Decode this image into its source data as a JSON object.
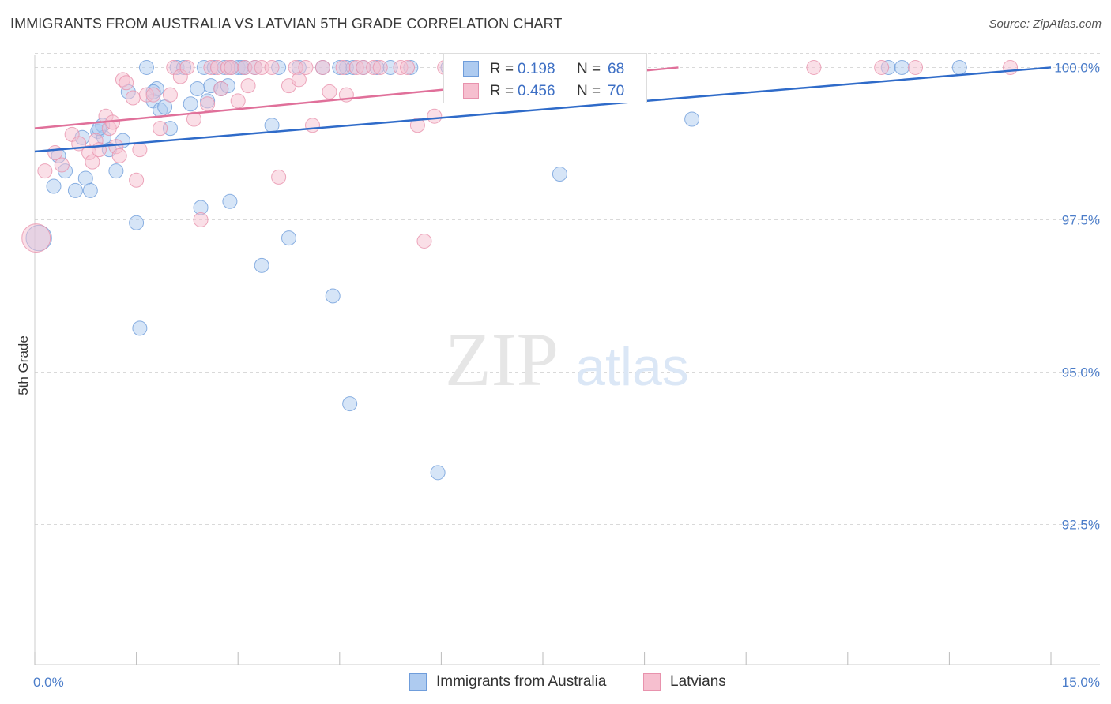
{
  "title": "IMMIGRANTS FROM AUSTRALIA VS LATVIAN 5TH GRADE CORRELATION CHART",
  "source": "Source: ZipAtlas.com",
  "watermark": {
    "zip": "ZIP",
    "atlas": "atlas"
  },
  "colors": {
    "blue_fill": "#aecbf0",
    "blue_stroke": "#6f9ddb",
    "blue_line": "#2f6bc9",
    "pink_fill": "#f6bfcf",
    "pink_stroke": "#e892ad",
    "pink_line": "#e0709a",
    "tick_text": "#4a7cc9",
    "grid": "#d9d9d9"
  },
  "stats": [
    {
      "r_label": "R =",
      "r_value": "0.198",
      "n_label": "N =",
      "n_value": "68",
      "color": "blue"
    },
    {
      "r_label": "R =",
      "r_value": "0.456",
      "n_label": "N =",
      "n_value": "70",
      "color": "pink"
    }
  ],
  "legend": [
    {
      "label": "Immigrants from Australia",
      "color": "blue"
    },
    {
      "label": "Latvians",
      "color": "pink"
    }
  ],
  "chart_data": {
    "type": "scatter",
    "title": "IMMIGRANTS FROM AUSTRALIA VS LATVIAN 5TH GRADE CORRELATION CHART",
    "xlabel": "",
    "ylabel": "5th Grade",
    "xlim": [
      0,
      15
    ],
    "ylim": [
      90.2,
      100.2
    ],
    "x_tick_labels": [
      {
        "value": 0,
        "label": "0.0%"
      },
      {
        "value": 15,
        "label": "15.0%"
      }
    ],
    "y_tick_labels": [
      {
        "value": 100,
        "label": "100.0%"
      },
      {
        "value": 97.5,
        "label": "97.5%"
      },
      {
        "value": 95,
        "label": "95.0%"
      },
      {
        "value": 92.5,
        "label": "92.5%"
      }
    ],
    "grid": "horizontal dashed",
    "legend_position": "bottom-center",
    "series": [
      {
        "name": "Immigrants from Australia",
        "color": "blue",
        "trendline": {
          "x": [
            0,
            15
          ],
          "y": [
            98.62,
            100.0
          ]
        },
        "points": [
          [
            0.06,
            97.2,
            1.8
          ],
          [
            0.28,
            98.05,
            1
          ],
          [
            0.35,
            98.55,
            1
          ],
          [
            0.45,
            98.3,
            1
          ],
          [
            0.6,
            97.98,
            1
          ],
          [
            0.7,
            98.85,
            1
          ],
          [
            0.75,
            98.18,
            1
          ],
          [
            0.82,
            97.98,
            1
          ],
          [
            0.93,
            98.95,
            1
          ],
          [
            1.0,
            99.05,
            1
          ],
          [
            1.02,
            98.85,
            1
          ],
          [
            1.1,
            98.65,
            1
          ],
          [
            1.2,
            98.3,
            1
          ],
          [
            1.3,
            98.8,
            1
          ],
          [
            1.38,
            99.6,
            1
          ],
          [
            1.5,
            97.45,
            1
          ],
          [
            1.55,
            95.72,
            1
          ],
          [
            1.65,
            100.0,
            1
          ],
          [
            1.75,
            99.45,
            1
          ],
          [
            1.8,
            99.65,
            1
          ],
          [
            1.85,
            99.3,
            1
          ],
          [
            1.92,
            99.35,
            1
          ],
          [
            2.0,
            99.0,
            1
          ],
          [
            2.1,
            100.0,
            1
          ],
          [
            2.2,
            100.0,
            1
          ],
          [
            2.3,
            99.4,
            1
          ],
          [
            2.4,
            99.65,
            1
          ],
          [
            2.45,
            97.7,
            1
          ],
          [
            2.5,
            100.0,
            1
          ],
          [
            2.6,
            99.7,
            1
          ],
          [
            2.65,
            100.0,
            1
          ],
          [
            2.75,
            99.65,
            1
          ],
          [
            2.85,
            99.7,
            1
          ],
          [
            2.9,
            100.0,
            1
          ],
          [
            3.0,
            100.0,
            1
          ],
          [
            3.1,
            100.0,
            1
          ],
          [
            2.8,
            100.0,
            1
          ],
          [
            2.88,
            97.8,
            1
          ],
          [
            3.05,
            100.0,
            1
          ],
          [
            3.25,
            100.0,
            1
          ],
          [
            3.35,
            96.75,
            1
          ],
          [
            3.6,
            100.0,
            1
          ],
          [
            3.5,
            99.05,
            1
          ],
          [
            3.75,
            97.2,
            1
          ],
          [
            3.9,
            100.0,
            1
          ],
          [
            4.25,
            100.0,
            1
          ],
          [
            4.4,
            96.25,
            1
          ],
          [
            4.6,
            100.0,
            1
          ],
          [
            4.5,
            100.0,
            1
          ],
          [
            4.7,
            100.0,
            1
          ],
          [
            4.85,
            100.0,
            1
          ],
          [
            4.65,
            94.48,
            1
          ],
          [
            5.05,
            100.0,
            1
          ],
          [
            5.25,
            100.0,
            1
          ],
          [
            5.55,
            100.0,
            1
          ],
          [
            5.95,
            93.35,
            1
          ],
          [
            6.1,
            100.0,
            1
          ],
          [
            6.25,
            100.0,
            1
          ],
          [
            7.3,
            100.0,
            1
          ],
          [
            7.75,
            98.25,
            1
          ],
          [
            8.25,
            100.0,
            1
          ],
          [
            9.7,
            99.15,
            1
          ],
          [
            12.6,
            100.0,
            1
          ],
          [
            12.8,
            100.0,
            1
          ],
          [
            13.65,
            100.0,
            1
          ],
          [
            0.95,
            99.0,
            1
          ],
          [
            1.75,
            99.6,
            1
          ],
          [
            2.55,
            99.45,
            1
          ]
        ]
      },
      {
        "name": "Latvians",
        "color": "pink",
        "trendline": {
          "x": [
            0,
            9.5
          ],
          "y": [
            99.0,
            100.0
          ]
        },
        "points": [
          [
            0.02,
            97.2,
            2.0
          ],
          [
            0.15,
            98.3,
            1
          ],
          [
            0.3,
            98.6,
            1
          ],
          [
            0.4,
            98.4,
            1
          ],
          [
            0.55,
            98.9,
            1
          ],
          [
            0.65,
            98.75,
            1
          ],
          [
            0.8,
            98.6,
            1
          ],
          [
            0.85,
            98.45,
            1
          ],
          [
            0.9,
            98.8,
            1
          ],
          [
            0.95,
            98.65,
            1
          ],
          [
            1.05,
            99.2,
            1
          ],
          [
            1.1,
            99.0,
            1
          ],
          [
            1.15,
            99.1,
            1
          ],
          [
            1.2,
            98.7,
            1
          ],
          [
            1.25,
            98.55,
            1
          ],
          [
            1.3,
            99.8,
            1
          ],
          [
            1.35,
            99.75,
            1
          ],
          [
            1.45,
            99.5,
            1
          ],
          [
            1.5,
            98.15,
            1
          ],
          [
            1.55,
            98.65,
            1
          ],
          [
            1.65,
            99.55,
            1
          ],
          [
            1.75,
            99.55,
            1
          ],
          [
            1.85,
            99.0,
            1
          ],
          [
            2.0,
            99.55,
            1
          ],
          [
            2.05,
            100.0,
            1
          ],
          [
            2.15,
            99.85,
            1
          ],
          [
            2.25,
            100.0,
            1
          ],
          [
            2.35,
            99.15,
            1
          ],
          [
            2.45,
            97.5,
            1
          ],
          [
            2.55,
            99.4,
            1
          ],
          [
            2.6,
            100.0,
            1
          ],
          [
            2.7,
            100.0,
            1
          ],
          [
            2.75,
            99.65,
            1
          ],
          [
            2.85,
            100.0,
            1
          ],
          [
            2.9,
            100.0,
            1
          ],
          [
            3.0,
            99.45,
            1
          ],
          [
            3.1,
            100.0,
            1
          ],
          [
            3.15,
            99.7,
            1
          ],
          [
            3.25,
            100.0,
            1
          ],
          [
            3.35,
            100.0,
            1
          ],
          [
            3.5,
            100.0,
            1
          ],
          [
            3.6,
            98.2,
            1
          ],
          [
            3.75,
            99.7,
            1
          ],
          [
            3.85,
            100.0,
            1
          ],
          [
            3.9,
            99.8,
            1
          ],
          [
            4.0,
            100.0,
            1
          ],
          [
            4.1,
            99.05,
            1
          ],
          [
            4.25,
            100.0,
            1
          ],
          [
            4.35,
            99.6,
            1
          ],
          [
            4.55,
            100.0,
            1
          ],
          [
            4.6,
            99.55,
            1
          ],
          [
            4.75,
            100.0,
            1
          ],
          [
            4.85,
            100.0,
            1
          ],
          [
            5.0,
            100.0,
            1
          ],
          [
            5.1,
            100.0,
            1
          ],
          [
            5.4,
            100.0,
            1
          ],
          [
            5.5,
            100.0,
            1
          ],
          [
            5.65,
            99.05,
            1
          ],
          [
            5.75,
            97.15,
            1
          ],
          [
            5.9,
            99.2,
            1
          ],
          [
            6.05,
            100.0,
            1
          ],
          [
            6.4,
            100.0,
            1
          ],
          [
            6.8,
            100.0,
            1
          ],
          [
            7.4,
            100.0,
            1
          ],
          [
            8.1,
            100.0,
            1
          ],
          [
            8.3,
            100.0,
            1
          ],
          [
            11.5,
            100.0,
            1
          ],
          [
            12.5,
            100.0,
            1
          ],
          [
            13.0,
            100.0,
            1
          ],
          [
            14.4,
            100.0,
            1
          ]
        ]
      }
    ]
  }
}
